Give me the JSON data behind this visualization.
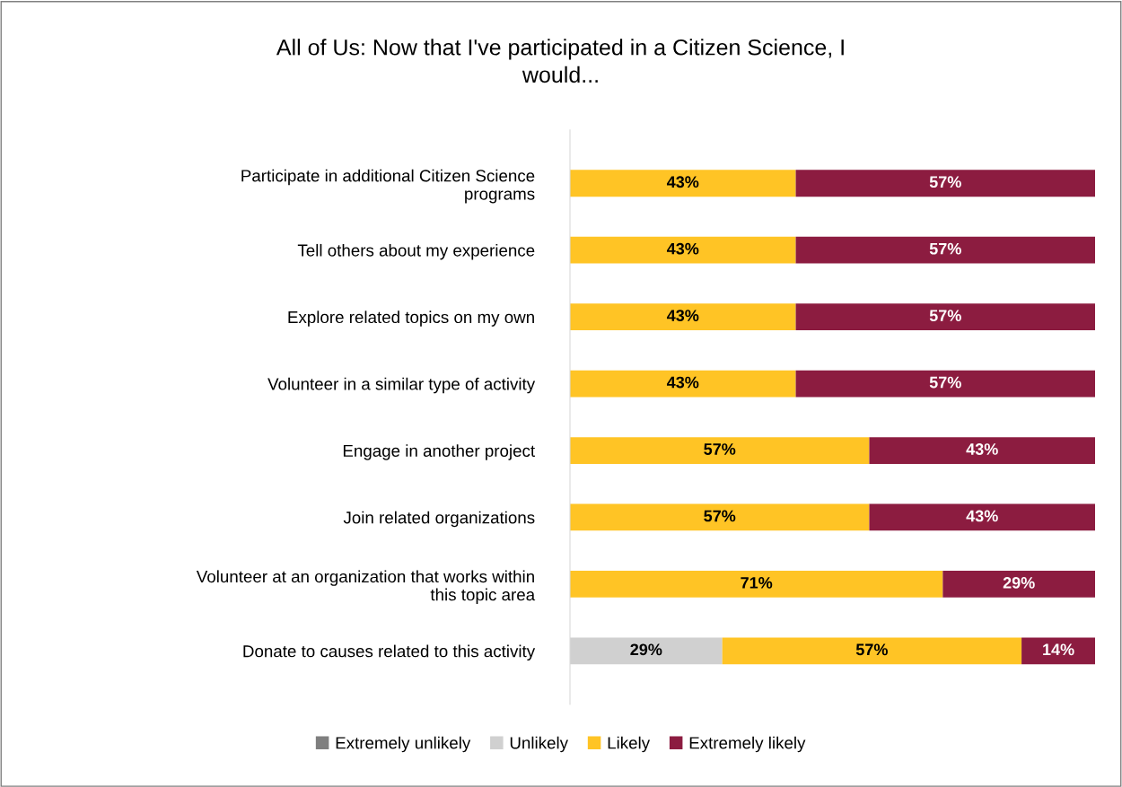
{
  "chart_data": {
    "type": "bar",
    "orientation": "horizontal",
    "stacked": true,
    "title": "All of Us: Now that I've participated in a Citizen Science, I would...",
    "categories": [
      "Participate in additional Citizen Science programs",
      "Tell others about my experience",
      "Explore related topics on my own",
      "Volunteer in a similar type of activity",
      "Engage in another project",
      "Join related organizations",
      "Volunteer at an organization that works within this topic area",
      "Donate to causes related to this activity"
    ],
    "series": [
      {
        "name": "Extremely unlikely",
        "color": "#7f7f7f",
        "values": [
          0,
          0,
          0,
          0,
          0,
          0,
          0,
          0
        ],
        "value_labels": [
          null,
          null,
          null,
          null,
          null,
          null,
          null,
          null
        ]
      },
      {
        "name": "Unlikely",
        "color": "#d0d0d0",
        "values": [
          0,
          0,
          0,
          0,
          0,
          0,
          0,
          29
        ],
        "value_labels": [
          null,
          null,
          null,
          null,
          null,
          null,
          null,
          "29%"
        ]
      },
      {
        "name": "Likely",
        "color": "#ffc425",
        "values": [
          43,
          43,
          43,
          43,
          57,
          57,
          71,
          57
        ],
        "value_labels": [
          "43%",
          "43%",
          "43%",
          "43%",
          "57%",
          "57%",
          "71%",
          "57%"
        ]
      },
      {
        "name": "Extremely likely",
        "color": "#8c1c40",
        "values": [
          57,
          57,
          57,
          57,
          43,
          43,
          29,
          14
        ],
        "value_labels": [
          "57%",
          "57%",
          "57%",
          "57%",
          "43%",
          "43%",
          "29%",
          "14%"
        ]
      }
    ],
    "xlim": [
      0,
      100
    ],
    "tick_labels": "y",
    "grid": false,
    "legend": "bottom"
  }
}
